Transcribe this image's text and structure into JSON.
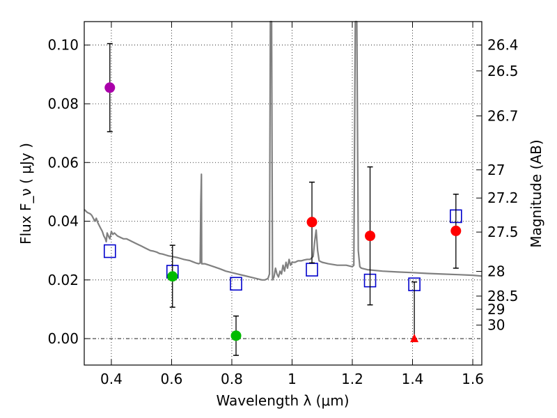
{
  "chart_data": {
    "type": "scatter",
    "xlabel": "Wavelength  λ (μm)",
    "ylabel": "Flux  F_ν  ( μJy )",
    "ylabel_right": "Magnitude (AB)",
    "xlim": [
      0.31,
      1.63
    ],
    "ylim": [
      -0.009,
      0.108
    ],
    "x_ticks": [
      0.4,
      0.6,
      0.8,
      1.0,
      1.2,
      1.4,
      1.6
    ],
    "x_tick_labels": [
      "0.4",
      "0.6",
      "0.8",
      "1",
      "1.2",
      "1.4",
      "1.6"
    ],
    "y_ticks": [
      0.0,
      0.02,
      0.04,
      0.06,
      0.08,
      0.1
    ],
    "y_tick_labels": [
      "0.00",
      "0.02",
      "0.04",
      "0.06",
      "0.08",
      "0.10"
    ],
    "mag_ticks": [
      {
        "label": "26.4",
        "flux": 0.1
      },
      {
        "label": "26.5",
        "flux": 0.0912
      },
      {
        "label": "26.7",
        "flux": 0.0759
      },
      {
        "label": "27",
        "flux": 0.0575
      },
      {
        "label": "27.2",
        "flux": 0.0479
      },
      {
        "label": "27.5",
        "flux": 0.0363
      },
      {
        "label": "28",
        "flux": 0.0229
      },
      {
        "label": "28.5",
        "flux": 0.0145
      },
      {
        "label": "29",
        "flux": 0.01
      },
      {
        "label": "30",
        "flux": 0.0046
      }
    ],
    "grid": true,
    "model_spectrum": {
      "name": "SED model",
      "color": "#808080",
      "x": [
        0.31,
        0.32,
        0.33,
        0.335,
        0.34,
        0.345,
        0.35,
        0.355,
        0.36,
        0.365,
        0.37,
        0.375,
        0.38,
        0.383,
        0.386,
        0.39,
        0.395,
        0.4,
        0.405,
        0.41,
        0.42,
        0.43,
        0.44,
        0.45,
        0.46,
        0.47,
        0.48,
        0.49,
        0.5,
        0.51,
        0.52,
        0.53,
        0.54,
        0.55,
        0.56,
        0.57,
        0.58,
        0.59,
        0.6,
        0.61,
        0.62,
        0.63,
        0.64,
        0.65,
        0.66,
        0.67,
        0.68,
        0.69,
        0.695,
        0.697,
        0.699,
        0.7,
        0.71,
        0.72,
        0.74,
        0.76,
        0.78,
        0.8,
        0.82,
        0.84,
        0.86,
        0.88,
        0.9,
        0.91,
        0.92,
        0.925,
        0.928,
        0.932,
        0.935,
        0.94,
        0.945,
        0.95,
        0.955,
        0.96,
        0.965,
        0.97,
        0.975,
        0.98,
        0.985,
        0.99,
        0.995,
        1.0,
        1.01,
        1.02,
        1.03,
        1.04,
        1.05,
        1.06,
        1.07,
        1.075,
        1.08,
        1.085,
        1.09,
        1.1,
        1.12,
        1.15,
        1.18,
        1.2,
        1.205,
        1.21,
        1.215,
        1.22,
        1.225,
        1.23,
        1.25,
        1.3,
        1.35,
        1.4,
        1.45,
        1.5,
        1.55,
        1.6,
        1.63
      ],
      "y": [
        0.044,
        0.043,
        0.0425,
        0.042,
        0.041,
        0.04,
        0.041,
        0.0395,
        0.0385,
        0.0375,
        0.0365,
        0.035,
        0.034,
        0.033,
        0.036,
        0.035,
        0.034,
        0.0365,
        0.0355,
        0.036,
        0.035,
        0.0345,
        0.034,
        0.034,
        0.0335,
        0.033,
        0.0325,
        0.032,
        0.0315,
        0.031,
        0.0305,
        0.03,
        0.0298,
        0.0295,
        0.029,
        0.0288,
        0.0285,
        0.0282,
        0.028,
        0.0278,
        0.0276,
        0.0273,
        0.027,
        0.0268,
        0.0266,
        0.0262,
        0.0258,
        0.0255,
        0.0258,
        0.046,
        0.056,
        0.0255,
        0.0255,
        0.0252,
        0.0245,
        0.0238,
        0.023,
        0.0225,
        0.022,
        0.0215,
        0.021,
        0.0205,
        0.02,
        0.02,
        0.0205,
        0.022,
        0.11,
        0.11,
        0.02,
        0.021,
        0.024,
        0.022,
        0.021,
        0.023,
        0.022,
        0.025,
        0.023,
        0.026,
        0.024,
        0.027,
        0.025,
        0.026,
        0.026,
        0.0265,
        0.0265,
        0.0268,
        0.027,
        0.027,
        0.028,
        0.033,
        0.037,
        0.03,
        0.0265,
        0.026,
        0.0255,
        0.025,
        0.025,
        0.0245,
        0.025,
        0.11,
        0.11,
        0.03,
        0.0245,
        0.024,
        0.0235,
        0.023,
        0.0227,
        0.0225,
        0.0222,
        0.022,
        0.0218,
        0.0216,
        0.0213
      ]
    },
    "detections": [
      {
        "name": "violet point",
        "color": "#aa00aa",
        "x": 0.395,
        "y": 0.0855,
        "yerr_low": 0.0705,
        "yerr_high": 0.1005
      },
      {
        "name": "green point",
        "color": "#00bb00",
        "x": 0.603,
        "y": 0.0212,
        "yerr_low": 0.0107,
        "yerr_high": 0.0318
      },
      {
        "name": "green point",
        "color": "#00bb00",
        "x": 0.814,
        "y": 0.001,
        "yerr_low": -0.0057,
        "yerr_high": 0.0077
      },
      {
        "name": "red point",
        "color": "#ff0000",
        "x": 1.066,
        "y": 0.0397,
        "yerr_low": 0.0258,
        "yerr_high": 0.0533
      },
      {
        "name": "red point",
        "color": "#ff0000",
        "x": 1.259,
        "y": 0.035,
        "yerr_low": 0.0115,
        "yerr_high": 0.0585
      },
      {
        "name": "red point",
        "color": "#ff0000",
        "x": 1.544,
        "y": 0.0367,
        "yerr_low": 0.024,
        "yerr_high": 0.0492
      }
    ],
    "upper_limit": {
      "name": "red triangle",
      "color": "#ff0000",
      "x": 1.406,
      "y": 0.0,
      "yerr_high": 0.0193
    },
    "model_photometry": {
      "name": "blue squares",
      "color": "#0000cc",
      "x": [
        0.395,
        0.603,
        0.814,
        1.066,
        1.259,
        1.406,
        1.544
      ],
      "y": [
        0.0298,
        0.0228,
        0.0187,
        0.0235,
        0.0198,
        0.0185,
        0.0417
      ]
    }
  }
}
